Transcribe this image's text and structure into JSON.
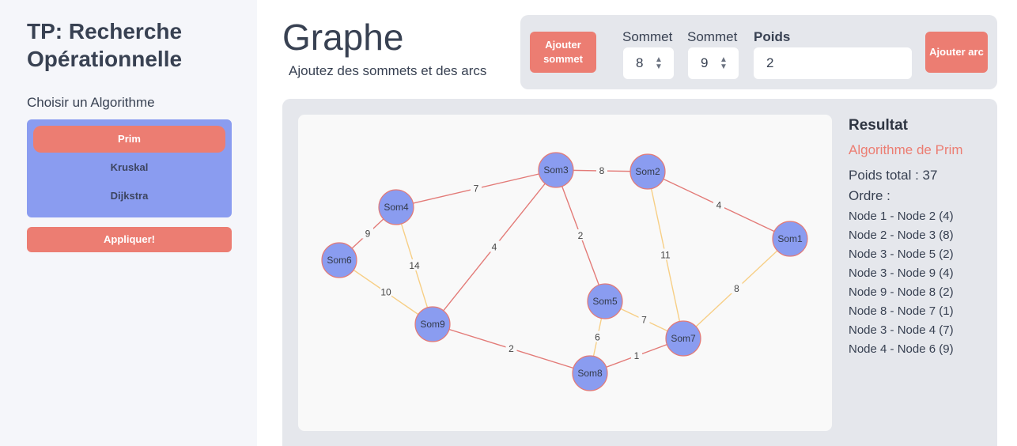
{
  "sidebar": {
    "title": "TP: Recherche Opérationnelle",
    "algo_heading": "Choisir un Algorithme",
    "algorithms": [
      {
        "label": "Prim",
        "active": true
      },
      {
        "label": "Kruskal",
        "active": false
      },
      {
        "label": "Dijkstra",
        "active": false
      }
    ],
    "apply_label": "Appliquer!"
  },
  "header": {
    "title": "Graphe",
    "subtitle": "Ajoutez des sommets et des arcs"
  },
  "toolbar": {
    "add_vertex_label": "Ajouter sommet",
    "from_label": "Sommet",
    "from_value": "8",
    "to_label": "Sommet",
    "to_value": "9",
    "weight_label": "Poids",
    "weight_value": "2",
    "add_arc_label": "Ajouter arc"
  },
  "graph": {
    "nodes": [
      {
        "id": "Som1",
        "label": "Som1"
      },
      {
        "id": "Som2",
        "label": "Som2"
      },
      {
        "id": "Som3",
        "label": "Som3"
      },
      {
        "id": "Som4",
        "label": "Som4"
      },
      {
        "id": "Som5",
        "label": "Som5"
      },
      {
        "id": "Som6",
        "label": "Som6"
      },
      {
        "id": "Som7",
        "label": "Som7"
      },
      {
        "id": "Som8",
        "label": "Som8"
      },
      {
        "id": "Som9",
        "label": "Som9"
      }
    ],
    "edges": [
      {
        "from": "Som3",
        "to": "Som2",
        "weight": "8",
        "in_tree": true
      },
      {
        "from": "Som2",
        "to": "Som1",
        "weight": "4",
        "in_tree": true
      },
      {
        "from": "Som4",
        "to": "Som3",
        "weight": "7",
        "in_tree": true
      },
      {
        "from": "Som3",
        "to": "Som5",
        "weight": "2",
        "in_tree": true
      },
      {
        "from": "Som3",
        "to": "Som9",
        "weight": "4",
        "in_tree": true
      },
      {
        "from": "Som4",
        "to": "Som6",
        "weight": "9",
        "in_tree": true
      },
      {
        "from": "Som4",
        "to": "Som9",
        "weight": "14",
        "in_tree": false
      },
      {
        "from": "Som6",
        "to": "Som9",
        "weight": "10",
        "in_tree": false
      },
      {
        "from": "Som2",
        "to": "Som7",
        "weight": "11",
        "in_tree": false
      },
      {
        "from": "Som1",
        "to": "Som7",
        "weight": "8",
        "in_tree": false
      },
      {
        "from": "Som5",
        "to": "Som7",
        "weight": "7",
        "in_tree": false
      },
      {
        "from": "Som5",
        "to": "Som8",
        "weight": "6",
        "in_tree": false
      },
      {
        "from": "Som9",
        "to": "Som8",
        "weight": "2",
        "in_tree": true
      },
      {
        "from": "Som8",
        "to": "Som7",
        "weight": "1",
        "in_tree": true
      }
    ],
    "colors": {
      "node_fill": "#8a9cf0",
      "node_stroke": "#e37b78",
      "tree_edge": "#e37b78",
      "other_edge": "#f7cf86",
      "label": "#444444"
    }
  },
  "result": {
    "title": "Resultat",
    "algorithm": "Algorithme de Prim",
    "total": "Poids total : 37",
    "order_label": "Ordre :",
    "order": [
      "Node 1 - Node 2 (4)",
      "Node 2 - Node 3 (8)",
      "Node 3 - Node 5 (2)",
      "Node 3 - Node 9 (4)",
      "Node 9 - Node 8 (2)",
      "Node 8 - Node 7 (1)",
      "Node 3 - Node 4 (7)",
      "Node 4 - Node 6 (9)"
    ]
  }
}
